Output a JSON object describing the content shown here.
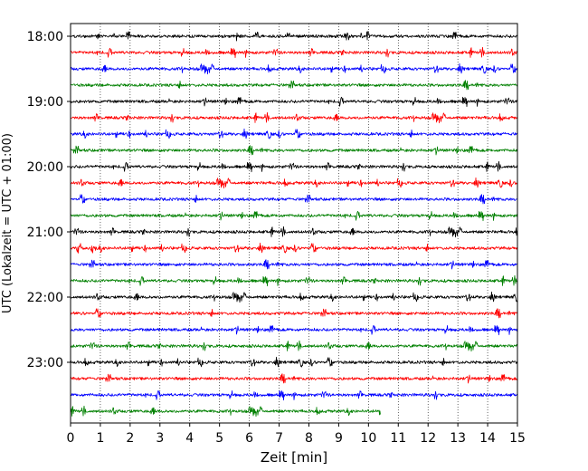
{
  "chart_data": {
    "type": "line",
    "title": "",
    "xlabel": "Zeit  [min]",
    "ylabel": "UTC (Lokalzeit = UTC + 01:00)",
    "xlim": [
      0,
      15
    ],
    "x_ticks": [
      0,
      1,
      2,
      3,
      4,
      5,
      6,
      7,
      8,
      9,
      10,
      11,
      12,
      13,
      14,
      15
    ],
    "x_grid": true,
    "y_tick_labels": [
      "18:00",
      "19:00",
      "20:00",
      "21:00",
      "22:00",
      "23:00"
    ],
    "trace_interval_minutes": 15,
    "trace_colors": [
      "#000000",
      "#ff0000",
      "#0000ff",
      "#008000"
    ],
    "traces": [
      {
        "start": "18:00",
        "end_minute": 15
      },
      {
        "start": "18:15",
        "end_minute": 15
      },
      {
        "start": "18:30",
        "end_minute": 15
      },
      {
        "start": "18:45",
        "end_minute": 15
      },
      {
        "start": "19:00",
        "end_minute": 15
      },
      {
        "start": "19:15",
        "end_minute": 15
      },
      {
        "start": "19:30",
        "end_minute": 15
      },
      {
        "start": "19:45",
        "end_minute": 15
      },
      {
        "start": "20:00",
        "end_minute": 15
      },
      {
        "start": "20:15",
        "end_minute": 15
      },
      {
        "start": "20:30",
        "end_minute": 15
      },
      {
        "start": "20:45",
        "end_minute": 15
      },
      {
        "start": "21:00",
        "end_minute": 15
      },
      {
        "start": "21:15",
        "end_minute": 15
      },
      {
        "start": "21:30",
        "end_minute": 15
      },
      {
        "start": "21:45",
        "end_minute": 15
      },
      {
        "start": "22:00",
        "end_minute": 15
      },
      {
        "start": "22:15",
        "end_minute": 15
      },
      {
        "start": "22:30",
        "end_minute": 15
      },
      {
        "start": "22:45",
        "end_minute": 15
      },
      {
        "start": "23:00",
        "end_minute": 15
      },
      {
        "start": "23:15",
        "end_minute": 15
      },
      {
        "start": "23:30",
        "end_minute": 15
      },
      {
        "start": "23:45",
        "end_minute": 10.4
      }
    ]
  }
}
